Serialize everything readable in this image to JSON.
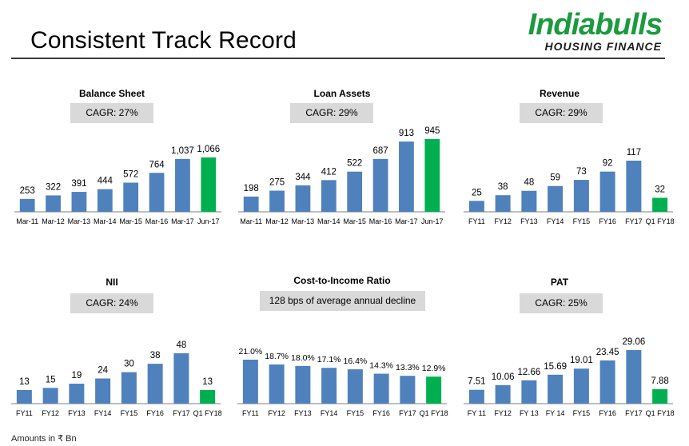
{
  "page": {
    "title": "Consistent Track Record",
    "footnote": "Amounts in ₹ Bn",
    "logo": {
      "main": "Indiabulls",
      "sub": "HOUSING FINANCE"
    }
  },
  "colors": {
    "bar": "#4f81bd",
    "highlight": "#00b050",
    "axis": "#7f7f7f",
    "cagr_bg": "#d9d9d9"
  },
  "chart_data": [
    {
      "type": "bar",
      "title": "Balance Sheet",
      "subtitle": "CAGR: 27%",
      "categories": [
        "Mar-11",
        "Mar-12",
        "Mar-13",
        "Mar-14",
        "Mar-15",
        "Mar-16",
        "Mar-17",
        "Jun-17"
      ],
      "values": [
        253,
        322,
        391,
        444,
        572,
        764,
        1037,
        1066
      ],
      "labels": [
        "253",
        "322",
        "391",
        "444",
        "572",
        "764",
        "1,037",
        "1,066"
      ],
      "highlight_index": 7,
      "ylim": [
        0,
        1066
      ]
    },
    {
      "type": "bar",
      "title": "Loan Assets",
      "subtitle": "CAGR: 29%",
      "categories": [
        "Mar-11",
        "Mar-12",
        "Mar-13",
        "Mar-14",
        "Mar-15",
        "Mar-16",
        "Mar-17",
        "Jun-17"
      ],
      "values": [
        198,
        275,
        344,
        412,
        522,
        687,
        913,
        945
      ],
      "labels": [
        "198",
        "275",
        "344",
        "412",
        "522",
        "687",
        "913",
        "945"
      ],
      "highlight_index": 7,
      "ylim": [
        0,
        945
      ]
    },
    {
      "type": "bar",
      "title": "Revenue",
      "subtitle": "CAGR: 29%",
      "categories": [
        "FY11",
        "FY12",
        "FY13",
        "FY14",
        "FY15",
        "FY16",
        "FY17",
        "Q1 FY18"
      ],
      "values": [
        25,
        38,
        48,
        59,
        73,
        92,
        117,
        32
      ],
      "labels": [
        "25",
        "38",
        "48",
        "59",
        "73",
        "92",
        "117",
        "32"
      ],
      "highlight_index": 7,
      "ylim": [
        0,
        117
      ]
    },
    {
      "type": "bar",
      "title": "NII",
      "subtitle": "CAGR: 24%",
      "categories": [
        "FY11",
        "FY12",
        "FY13",
        "FY14",
        "FY15",
        "FY16",
        "FY17",
        "Q1 FY18"
      ],
      "values": [
        13,
        15,
        19,
        24,
        30,
        38,
        48,
        13
      ],
      "labels": [
        "13",
        "15",
        "19",
        "24",
        "30",
        "38",
        "48",
        "13"
      ],
      "highlight_index": 7,
      "ylim": [
        0,
        48
      ]
    },
    {
      "type": "bar",
      "title": "Cost-to-Income Ratio",
      "subtitle": "128 bps of average annual decline",
      "categories": [
        "FY11",
        "FY12",
        "FY13",
        "FY14",
        "FY15",
        "FY16",
        "FY17",
        "Q1 FY18"
      ],
      "values": [
        21.0,
        18.7,
        18.0,
        17.1,
        16.4,
        14.3,
        13.3,
        12.9
      ],
      "labels": [
        "21.0%",
        "18.7%",
        "18.0%",
        "17.1%",
        "16.4%",
        "14.3%",
        "13.3%",
        "12.9%"
      ],
      "highlight_index": 7,
      "ylim": [
        0,
        21.0
      ]
    },
    {
      "type": "bar",
      "title": "PAT",
      "subtitle": "CAGR: 25%",
      "categories": [
        "FY 11",
        "FY12",
        "FY 13",
        "FY 14",
        "FY15",
        "FY16",
        "FY17",
        "Q1 FY18"
      ],
      "values": [
        7.51,
        10.06,
        12.66,
        15.69,
        19.01,
        23.45,
        29.06,
        7.88
      ],
      "labels": [
        "7.51",
        "10.06",
        "12.66",
        "15.69",
        "19.01",
        "23.45",
        "29.06",
        "7.88"
      ],
      "highlight_index": 7,
      "ylim": [
        0,
        29.06
      ]
    }
  ]
}
